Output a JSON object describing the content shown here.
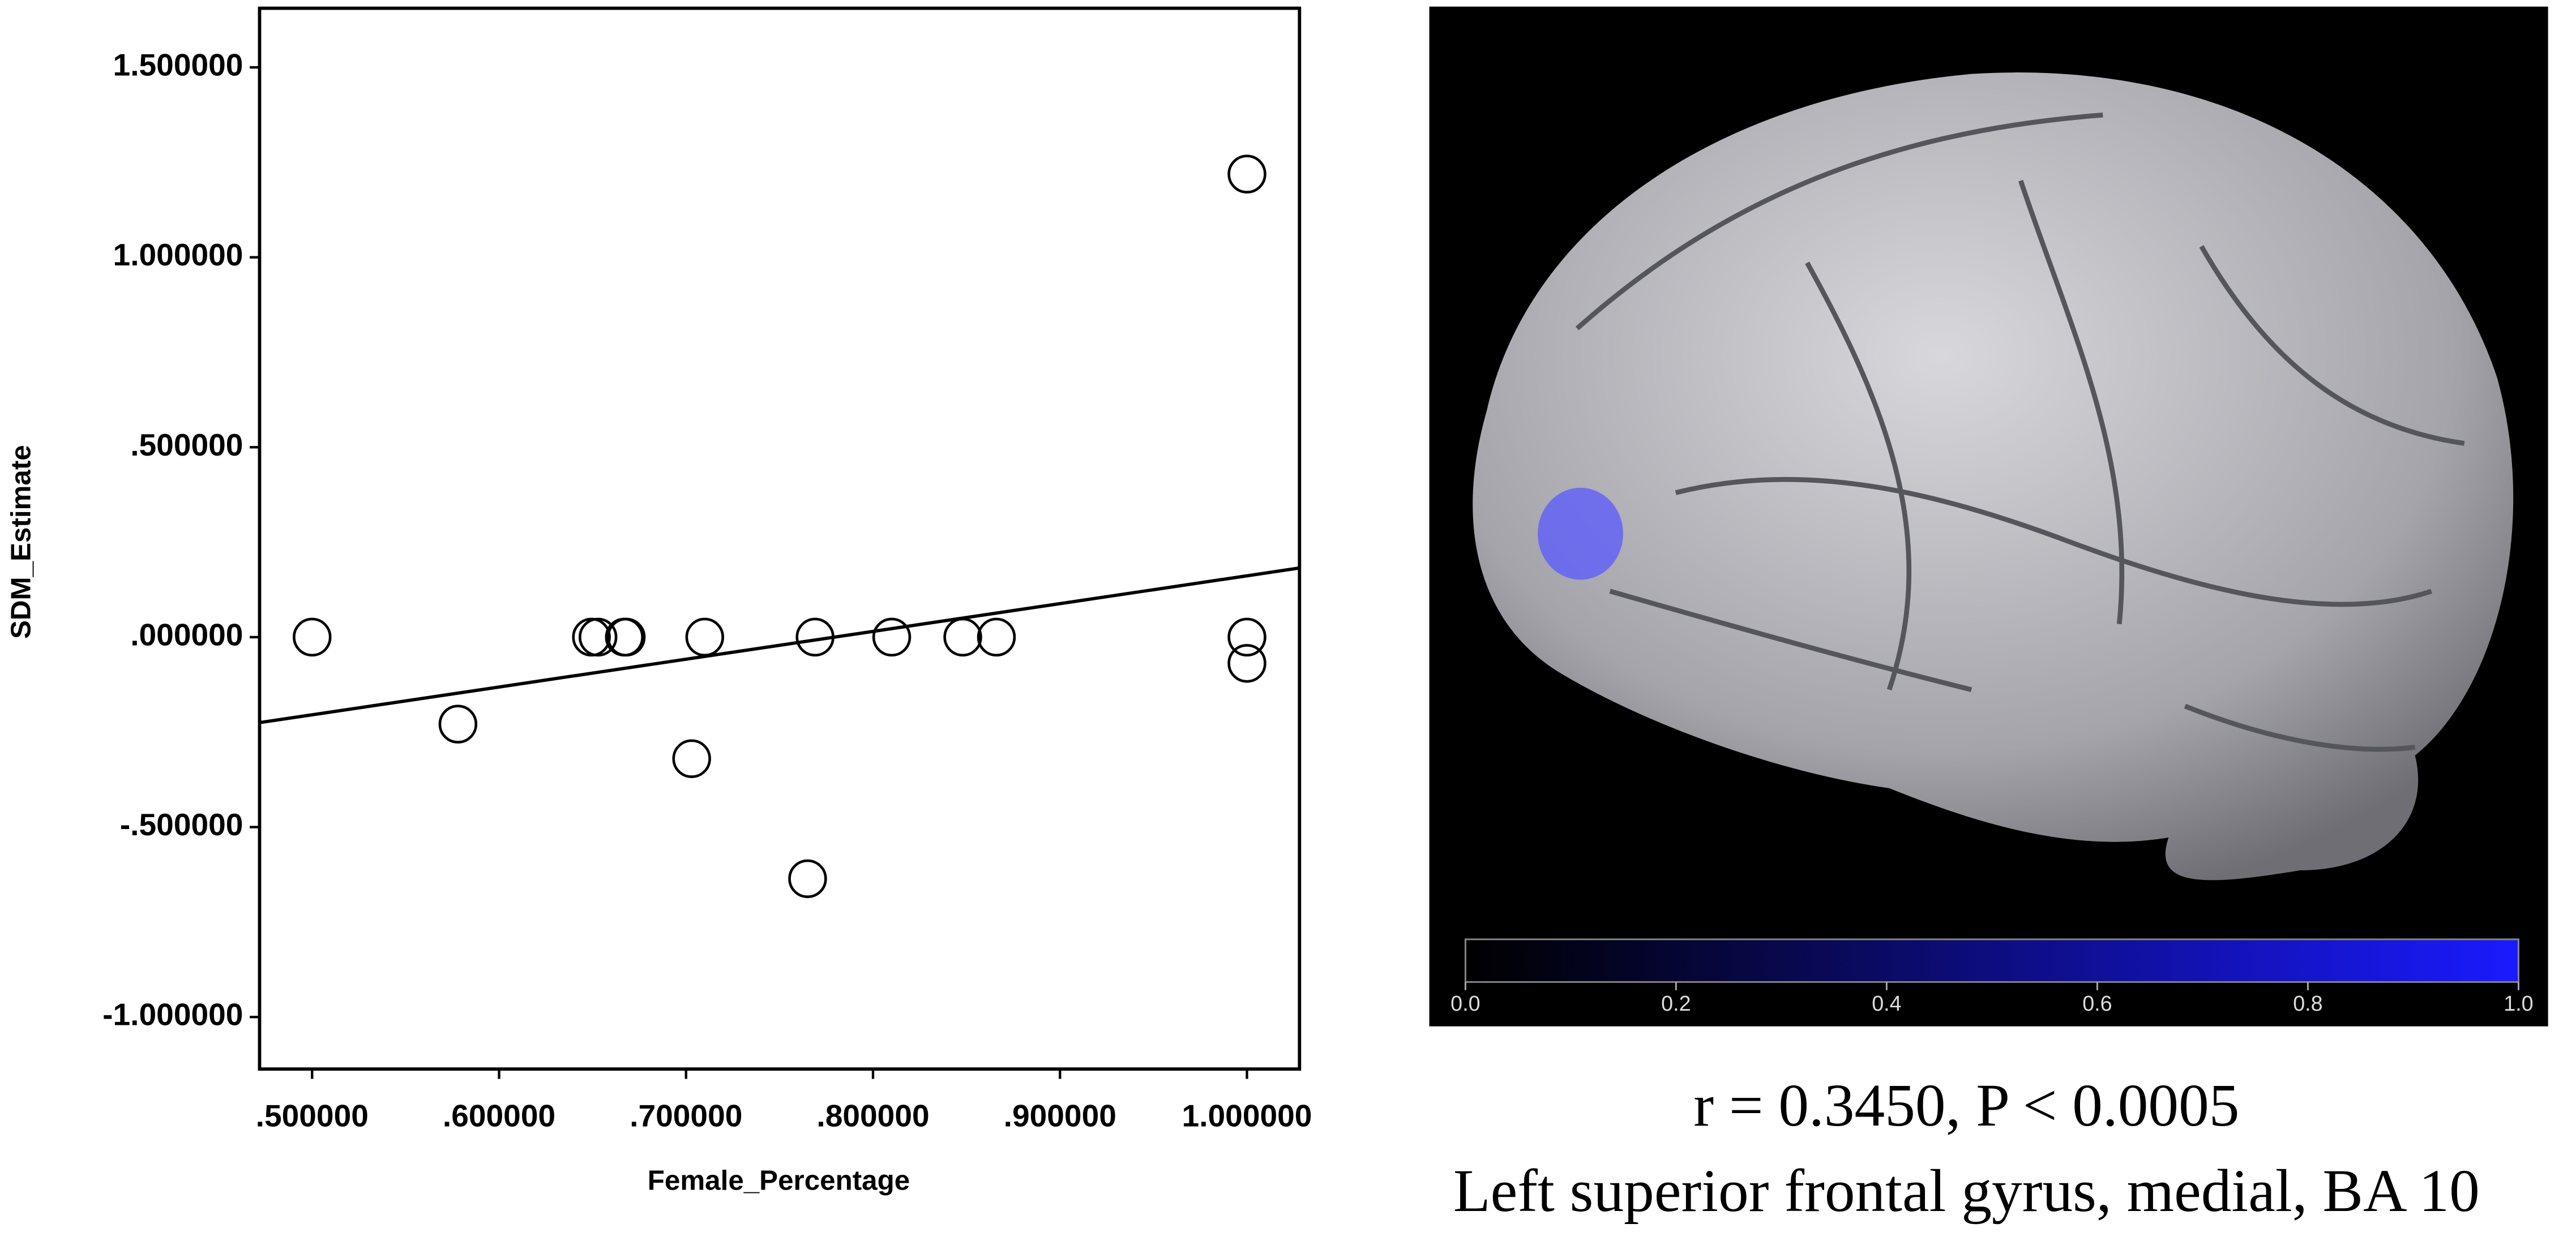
{
  "chart_data": {
    "type": "scatter",
    "xlabel": "Female_Percentage",
    "ylabel": "SDM_Estimate",
    "x": [
      0.5,
      0.578,
      0.6494,
      0.6529,
      0.667,
      0.668,
      0.703,
      0.71,
      0.765,
      0.769,
      0.81,
      0.848,
      0.866,
      1.0,
      1.0,
      1.0
    ],
    "values": [
      0,
      -0.229,
      0,
      0,
      0,
      0,
      -0.32,
      0,
      -0.636,
      0,
      0,
      0,
      0,
      1.219,
      0,
      -0.069
    ],
    "color": "#000000",
    "fit_line": {
      "x": [
        0.4719,
        1.0281
      ],
      "y": [
        -0.225,
        0.182
      ]
    },
    "xlim": [
      0.4719,
      1.0281
    ],
    "ylim": [
      -1.137,
      1.6556
    ],
    "xticks": [
      {
        "value": 0.5,
        "label": ".500000"
      },
      {
        "value": 0.6,
        "label": ".600000"
      },
      {
        "value": 0.7,
        "label": ".700000"
      },
      {
        "value": 0.8,
        "label": ".800000"
      },
      {
        "value": 0.9,
        "label": ".900000"
      },
      {
        "value": 1.0,
        "label": "1.000000"
      }
    ],
    "yticks": [
      {
        "value": -1,
        "label": "-1.000000"
      },
      {
        "value": -0.5,
        "label": "-.500000"
      },
      {
        "value": 0,
        "label": ".000000"
      },
      {
        "value": 0.5,
        "label": ".500000"
      },
      {
        "value": 1,
        "label": "1.000000"
      },
      {
        "value": 1.5,
        "label": "1.500000"
      }
    ]
  },
  "brain_panel": {
    "colorbar": {
      "lim": [
        0,
        1
      ],
      "ticks": [
        {
          "value": 0,
          "label": "0.0"
        },
        {
          "value": 0.2,
          "label": "0.2"
        },
        {
          "value": 0.4,
          "label": "0.4"
        },
        {
          "value": 0.6,
          "label": "0.6"
        },
        {
          "value": 0.8,
          "label": "0.8"
        },
        {
          "value": 1,
          "label": "1.0"
        }
      ]
    },
    "caption": [
      "r = 0.3450, P < 0.0005",
      "Left superior frontal gyrus, medial, BA 10"
    ]
  }
}
